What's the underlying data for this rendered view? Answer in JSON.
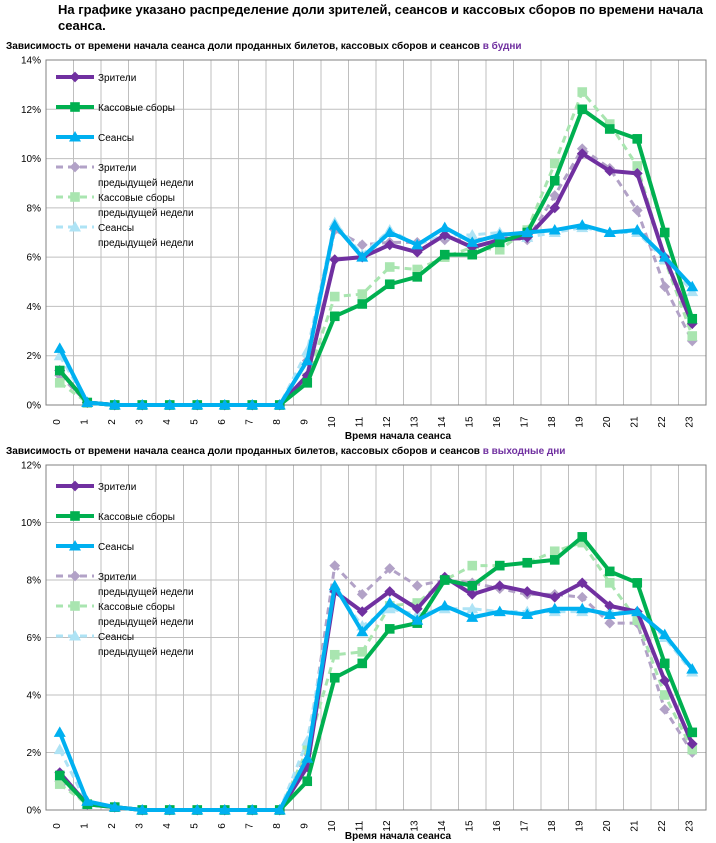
{
  "page": {
    "title": "На графике указано распределение доли зрителей, сеансов и кассовых сборов по времени начала сеанса."
  },
  "charts": [
    {
      "title_prefix": "Зависимость от времени начала сеанса доли проданных билетов, кассовых сборов и сеансов ",
      "title_highlight": "в будни"
    },
    {
      "title_prefix": "Зависимость от времени начала сеанса доли проданных билетов, кассовых сборов и сеансов ",
      "title_highlight": "в выходные дни"
    }
  ],
  "chart_data": [
    {
      "type": "line",
      "title": "Зависимость от времени начала сеанса доли проданных билетов, кассовых сборов и сеансов в будни",
      "xlabel": "Время начала сеанса",
      "ylabel": "",
      "x": [
        0,
        1,
        2,
        3,
        4,
        5,
        6,
        7,
        8,
        9,
        10,
        11,
        12,
        13,
        14,
        15,
        16,
        17,
        18,
        19,
        20,
        21,
        22,
        23
      ],
      "categories": [
        "0",
        "1",
        "2",
        "3",
        "4",
        "5",
        "6",
        "7",
        "8",
        "9",
        "10",
        "11",
        "12",
        "13",
        "14",
        "15",
        "16",
        "17",
        "18",
        "19",
        "20",
        "21",
        "22",
        "23"
      ],
      "ylim": [
        0,
        14
      ],
      "yticks": [
        0,
        2,
        4,
        6,
        8,
        10,
        12,
        14
      ],
      "ytick_labels": [
        "0%",
        "2%",
        "4%",
        "6%",
        "8%",
        "10%",
        "12%",
        "14%"
      ],
      "grid": true,
      "legend_position": "top-left",
      "series": [
        {
          "name": "Зрители",
          "style": "solid",
          "marker": "diamond",
          "color": "#7030a0",
          "values": [
            1.4,
            0.1,
            0,
            0,
            0,
            0,
            0,
            0,
            0,
            1.2,
            5.9,
            6.0,
            6.5,
            6.2,
            6.9,
            6.4,
            6.7,
            6.8,
            8.0,
            10.2,
            9.5,
            9.4,
            6.0,
            3.3
          ]
        },
        {
          "name": "Кассовые сборы",
          "style": "solid",
          "marker": "square",
          "color": "#00b050",
          "values": [
            1.4,
            0.1,
            0,
            0,
            0,
            0,
            0,
            0,
            0,
            0.9,
            3.6,
            4.1,
            4.9,
            5.2,
            6.1,
            6.1,
            6.6,
            7.0,
            9.1,
            12.0,
            11.2,
            10.8,
            7.0,
            3.5
          ]
        },
        {
          "name": "Сеансы",
          "style": "solid",
          "marker": "triangle",
          "color": "#00b0f0",
          "values": [
            2.3,
            0.1,
            0,
            0,
            0,
            0,
            0,
            0,
            0,
            1.8,
            7.3,
            6.0,
            7.0,
            6.5,
            7.2,
            6.6,
            6.9,
            7.0,
            7.1,
            7.3,
            7.0,
            7.1,
            6.0,
            4.8
          ]
        },
        {
          "name": "Зрители\nпредыдущей недели",
          "style": "dashed",
          "marker": "diamond",
          "color": "#b2a2c7",
          "values": [
            1.2,
            0.1,
            0,
            0,
            0,
            0,
            0,
            0,
            0,
            1.8,
            7.1,
            6.5,
            6.6,
            6.6,
            6.7,
            6.7,
            6.8,
            6.7,
            8.5,
            10.4,
            9.6,
            7.9,
            4.8,
            2.6
          ]
        },
        {
          "name": "Кассовые сборы\nпредыдущей недели",
          "style": "dashed",
          "marker": "square",
          "color": "#a9e5b0",
          "values": [
            0.9,
            0.1,
            0,
            0,
            0,
            0,
            0,
            0,
            0,
            1.1,
            4.4,
            4.5,
            5.6,
            5.5,
            6.0,
            6.4,
            6.3,
            7.1,
            9.8,
            12.7,
            11.4,
            9.7,
            5.9,
            2.8
          ]
        },
        {
          "name": "Сеансы\nпредыдущей недели",
          "style": "dashed",
          "marker": "triangle",
          "color": "#aee3f5",
          "values": [
            2.0,
            0.1,
            0,
            0,
            0,
            0,
            0,
            0,
            0,
            2.2,
            7.4,
            6.1,
            7.1,
            6.5,
            6.9,
            6.9,
            7.0,
            6.8,
            7.0,
            7.2,
            7.0,
            7.0,
            5.9,
            4.6
          ]
        }
      ]
    },
    {
      "type": "line",
      "title": "Зависимость от времени начала сеанса доли проданных билетов, кассовых сборов и сеансов в выходные дни",
      "xlabel": "Время начала сеанса",
      "ylabel": "",
      "x": [
        0,
        1,
        2,
        3,
        4,
        5,
        6,
        7,
        8,
        9,
        10,
        11,
        12,
        13,
        14,
        15,
        16,
        17,
        18,
        19,
        20,
        21,
        22,
        23
      ],
      "categories": [
        "0",
        "1",
        "2",
        "3",
        "4",
        "5",
        "6",
        "7",
        "8",
        "9",
        "10",
        "11",
        "12",
        "13",
        "14",
        "15",
        "16",
        "17",
        "18",
        "19",
        "20",
        "21",
        "22",
        "23"
      ],
      "ylim": [
        0,
        12
      ],
      "yticks": [
        0,
        2,
        4,
        6,
        8,
        10,
        12
      ],
      "ytick_labels": [
        "0%",
        "2%",
        "4%",
        "6%",
        "8%",
        "10%",
        "12%"
      ],
      "grid": true,
      "legend_position": "top-left",
      "series": [
        {
          "name": "Зрители",
          "style": "solid",
          "marker": "diamond",
          "color": "#7030a0",
          "values": [
            1.3,
            0.2,
            0.1,
            0,
            0,
            0,
            0,
            0,
            0,
            1.5,
            7.6,
            6.9,
            7.6,
            7.0,
            8.1,
            7.5,
            7.8,
            7.6,
            7.4,
            7.9,
            7.1,
            6.9,
            4.5,
            2.3
          ]
        },
        {
          "name": "Кассовые сборы",
          "style": "solid",
          "marker": "square",
          "color": "#00b050",
          "values": [
            1.2,
            0.2,
            0.1,
            0,
            0,
            0,
            0,
            0,
            0,
            1.0,
            4.6,
            5.1,
            6.3,
            6.5,
            8.0,
            7.8,
            8.5,
            8.6,
            8.7,
            9.5,
            8.3,
            7.9,
            5.1,
            2.7
          ]
        },
        {
          "name": "Сеансы",
          "style": "solid",
          "marker": "triangle",
          "color": "#00b0f0",
          "values": [
            2.7,
            0.3,
            0.1,
            0,
            0,
            0,
            0,
            0,
            0,
            1.8,
            7.8,
            6.2,
            7.2,
            6.6,
            7.1,
            6.7,
            6.9,
            6.8,
            7.0,
            7.0,
            6.8,
            6.9,
            6.1,
            4.9
          ]
        },
        {
          "name": "Зрители\nпредыдущей недели",
          "style": "dashed",
          "marker": "diamond",
          "color": "#b2a2c7",
          "values": [
            1.0,
            0.2,
            0.1,
            0,
            0,
            0,
            0,
            0,
            0,
            2.0,
            8.5,
            7.5,
            8.4,
            7.8,
            8.0,
            7.9,
            7.7,
            7.5,
            7.5,
            7.4,
            6.5,
            6.5,
            3.5,
            2.0
          ]
        },
        {
          "name": "Кассовые сборы\nпредыдущей недели",
          "style": "dashed",
          "marker": "square",
          "color": "#a9e5b0",
          "values": [
            0.9,
            0.2,
            0.1,
            0,
            0,
            0,
            0,
            0,
            0,
            2.1,
            5.4,
            5.5,
            7.1,
            7.2,
            8.0,
            8.5,
            8.5,
            8.6,
            9.0,
            9.3,
            7.9,
            6.6,
            4.0,
            2.1
          ]
        },
        {
          "name": "Сеансы\nпредыдущей недели",
          "style": "dashed",
          "marker": "triangle",
          "color": "#aee3f5",
          "values": [
            2.1,
            0.2,
            0.1,
            0,
            0,
            0,
            0,
            0,
            0,
            2.4,
            7.7,
            6.4,
            7.0,
            6.8,
            7.0,
            7.0,
            6.9,
            6.9,
            6.9,
            6.9,
            6.9,
            6.9,
            6.0,
            4.8
          ]
        }
      ]
    }
  ]
}
